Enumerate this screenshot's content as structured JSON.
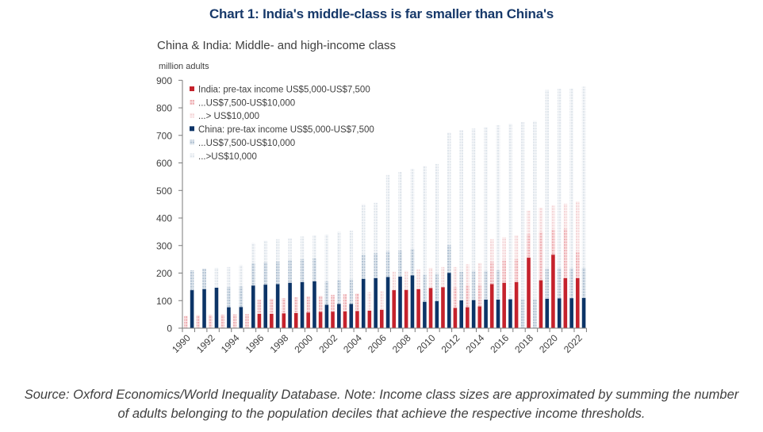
{
  "title": "Chart 1: India's middle-class is far smaller than China's",
  "subtitle": "China & India: Middle- and high-income class",
  "unit_label": "million adults",
  "footer": {
    "line1": "Source: Oxford Economics/World Inequality Database. Note: Income class sizes are approximated by summing the number",
    "line2": "of adults belonging to the population deciles that achieve the respective income thresholds."
  },
  "colors": {
    "title": "#17396a",
    "axis": "#7a7a7a",
    "text": "#404040"
  },
  "chart_data": {
    "type": "bar",
    "stacked": true,
    "title": "China & India: Middle- and high-income class",
    "xlabel": "",
    "ylabel": "million adults",
    "ylim": [
      0,
      900
    ],
    "y_ticks": [
      0,
      100,
      200,
      300,
      400,
      500,
      600,
      700,
      800,
      900
    ],
    "grid": false,
    "legend_position": "top-left",
    "categories": [
      "1990",
      "1991",
      "1992",
      "1993",
      "1994",
      "1995",
      "1996",
      "1997",
      "1998",
      "1999",
      "2000",
      "2001",
      "2002",
      "2003",
      "2004",
      "2005",
      "2006",
      "2007",
      "2008",
      "2009",
      "2010",
      "2011",
      "2012",
      "2013",
      "2014",
      "2015",
      "2016",
      "2017",
      "2018",
      "2019",
      "2020",
      "2021",
      "2022"
    ],
    "x_tick_labels": [
      "1990",
      "1992",
      "1994",
      "1996",
      "1998",
      "2000",
      "2002",
      "2004",
      "2006",
      "2008",
      "2010",
      "2012",
      "2014",
      "2016",
      "2018",
      "2020",
      "2022"
    ],
    "series": [
      {
        "key": "india-5000-7500",
        "group": "India",
        "name": "India: pre-tax income US$5,000-US$7,500",
        "color": "#c5222c",
        "pattern": "solid",
        "pattern_bg": "#c5222c",
        "values": [
          0,
          0,
          0,
          0,
          0,
          0,
          52,
          52,
          54,
          55,
          57,
          59,
          60,
          61,
          62,
          64,
          67,
          138,
          139,
          142,
          146,
          149,
          74,
          76,
          79,
          160,
          165,
          167,
          256,
          174,
          267,
          182,
          182
        ]
      },
      {
        "key": "india-7500-10000",
        "group": "India",
        "name": "...US$7,500-US$10,000",
        "color": "#eeb0b4",
        "pattern": "checker",
        "pattern_bg": "#fae6e7",
        "values": [
          45,
          47,
          48,
          49,
          50,
          51,
          51,
          55,
          55,
          57,
          58,
          58,
          61,
          62,
          64,
          0,
          0,
          0,
          0,
          0,
          0,
          0,
          76,
          79,
          78,
          81,
          81,
          84,
          86,
          175,
          90,
          179,
          95
        ]
      },
      {
        "key": "india-10000-plus",
        "group": "India",
        "name": "...> US$10,000",
        "color": "#f5d6d8",
        "pattern": "checker",
        "pattern_bg": "#fdf5f5",
        "values": [
          0,
          0,
          0,
          0,
          0,
          0,
          0,
          0,
          0,
          0,
          0,
          0,
          0,
          0,
          0,
          67,
          67,
          67,
          69,
          71,
          73,
          73,
          72,
          77,
          80,
          82,
          84,
          85,
          85,
          88,
          88,
          91,
          183
        ]
      },
      {
        "key": "china-5000-7500",
        "group": "China",
        "name": "China: pre-tax income US$5,000-US$7,500",
        "color": "#0c3467",
        "pattern": "solid",
        "pattern_bg": "#0c3467",
        "values": [
          138,
          142,
          147,
          76,
          77,
          155,
          158,
          160,
          165,
          167,
          170,
          85,
          88,
          88,
          179,
          182,
          186,
          187,
          192,
          96,
          98,
          201,
          101,
          102,
          104,
          104,
          105,
          0,
          0,
          107,
          108,
          109,
          110
        ]
      },
      {
        "key": "china-7500-10000",
        "group": "China",
        "name": "...US$7,500-US$10,000",
        "color": "#b3c3d3",
        "pattern": "checker",
        "pattern_bg": "#e4eaf0",
        "values": [
          72,
          74,
          0,
          74,
          75,
          80,
          81,
          82,
          83,
          84,
          84,
          85,
          86,
          89,
          88,
          90,
          93,
          95,
          96,
          98,
          100,
          101,
          104,
          106,
          104,
          107,
          0,
          105,
          105,
          109,
          110,
          109,
          109
        ]
      },
      {
        "key": "china-10000-plus",
        "group": "China",
        "name": "...>US$10,000",
        "color": "#e0e6ec",
        "pattern": "checker",
        "pattern_bg": "#f8f9fb",
        "values": [
          0,
          0,
          72,
          72,
          77,
          74,
          79,
          81,
          78,
          82,
          83,
          170,
          176,
          177,
          183,
          183,
          277,
          285,
          291,
          395,
          398,
          409,
          514,
          517,
          522,
          526,
          637,
          643,
          647,
          649,
          651,
          652,
          658
        ]
      }
    ]
  }
}
